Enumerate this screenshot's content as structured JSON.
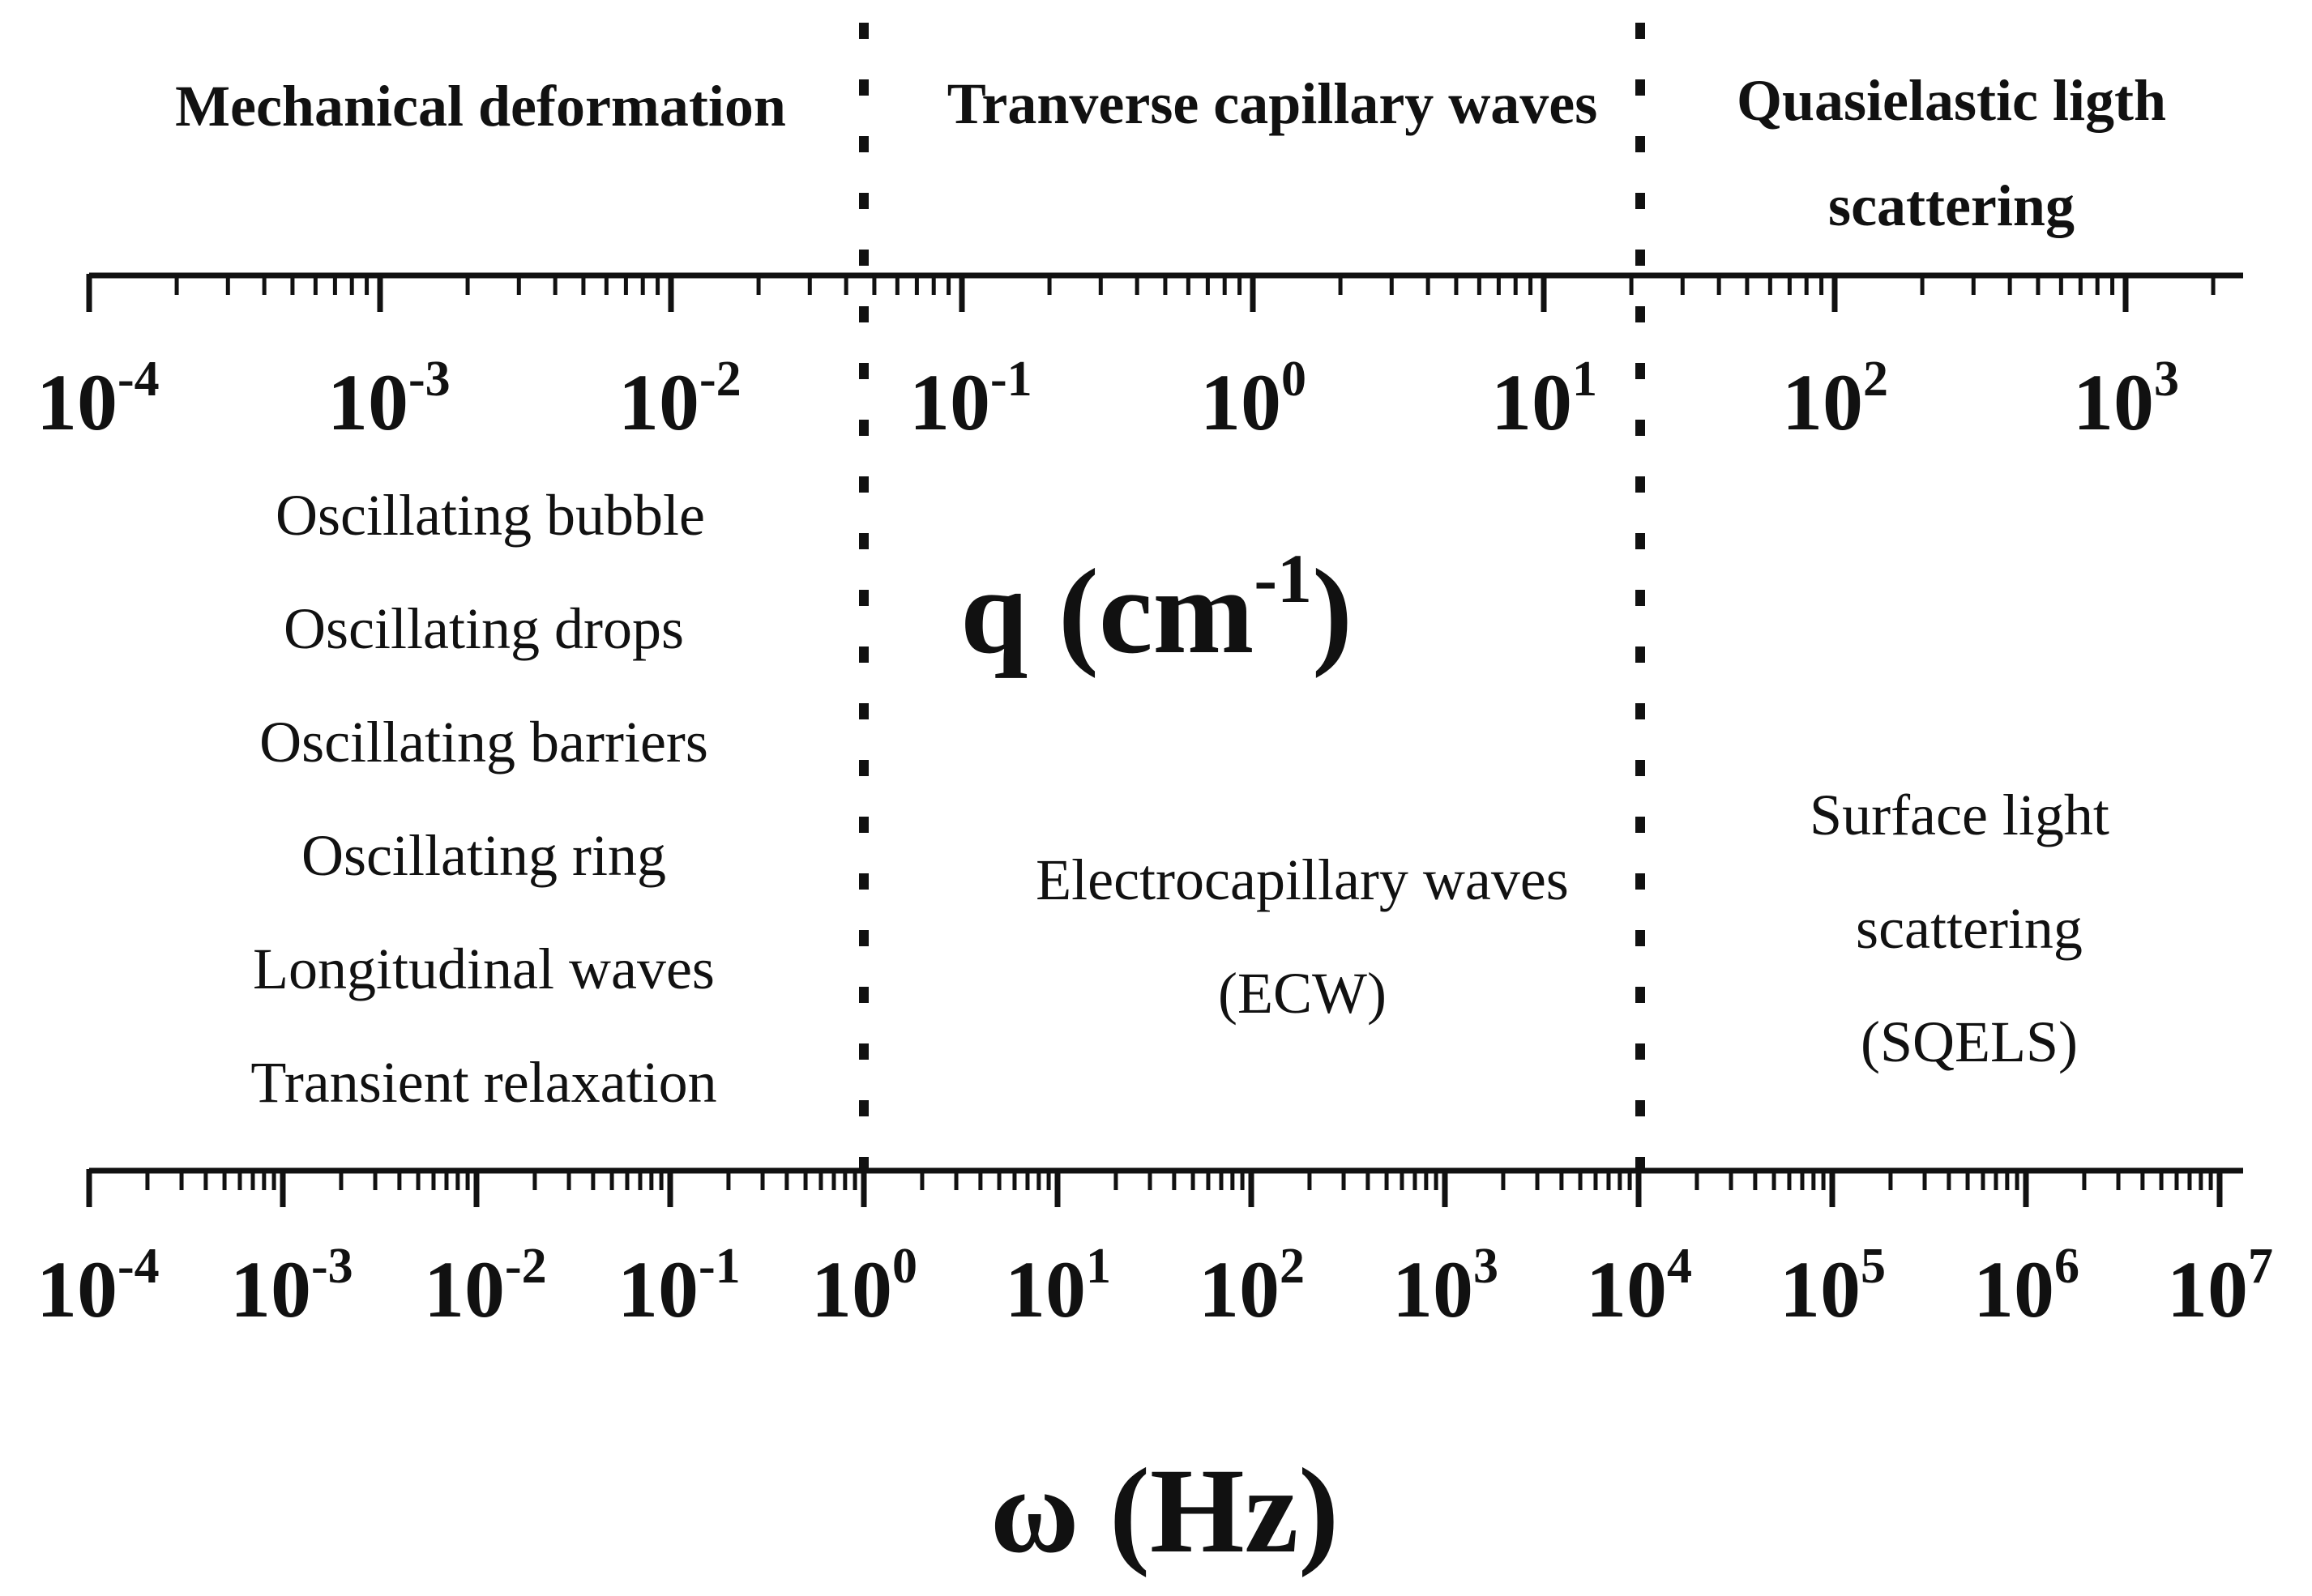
{
  "region_titles": {
    "mechanical": "Mechanical deformation",
    "transverse": "Tranverse capillary waves",
    "quasielastic_line1": "Quasielastic ligth",
    "quasielastic_line2": "scattering"
  },
  "top_axis": {
    "label_base": "q (cm",
    "label_exponent": "-1",
    "label_close": ")",
    "scale": "log",
    "range": [
      0.0001,
      2500
    ],
    "tick_labels": [
      {
        "base": "10",
        "exp": "-4",
        "value": 0.0001
      },
      {
        "base": "10",
        "exp": "-3",
        "value": 0.001
      },
      {
        "base": "10",
        "exp": "-2",
        "value": 0.01
      },
      {
        "base": "10",
        "exp": "-1",
        "value": 0.1
      },
      {
        "base": "10",
        "exp": "0",
        "value": 1
      },
      {
        "base": "10",
        "exp": "1",
        "value": 10
      },
      {
        "base": "10",
        "exp": "2",
        "value": 100
      },
      {
        "base": "10",
        "exp": "3",
        "value": 1000
      }
    ]
  },
  "bottom_axis": {
    "label": "ω (Hz)",
    "scale": "log",
    "range": [
      0.0001,
      10000000
    ],
    "tick_labels": [
      {
        "base": "10",
        "exp": "-4",
        "value": 0.0001
      },
      {
        "base": "10",
        "exp": "-3",
        "value": 0.001
      },
      {
        "base": "10",
        "exp": "-2",
        "value": 0.01
      },
      {
        "base": "10",
        "exp": "-1",
        "value": 0.1
      },
      {
        "base": "10",
        "exp": "0",
        "value": 1
      },
      {
        "base": "10",
        "exp": "1",
        "value": 10
      },
      {
        "base": "10",
        "exp": "2",
        "value": 100
      },
      {
        "base": "10",
        "exp": "3",
        "value": 1000
      },
      {
        "base": "10",
        "exp": "4",
        "value": 10000
      },
      {
        "base": "10",
        "exp": "5",
        "value": 100000
      },
      {
        "base": "10",
        "exp": "6",
        "value": 1000000
      },
      {
        "base": "10",
        "exp": "7",
        "value": 10000000
      }
    ]
  },
  "boundaries_hz": [
    1,
    10000
  ],
  "techniques": {
    "mechanical": [
      "Oscillating bubble",
      "Oscillating drops",
      "Oscillating barriers",
      "Oscillating ring",
      "Longitudinal waves",
      "Transient relaxation"
    ],
    "transverse": [
      "Electrocapillary waves",
      "(ECW)"
    ],
    "quasielastic": [
      "Surface light",
      "scattering",
      "(SQELS)"
    ]
  }
}
